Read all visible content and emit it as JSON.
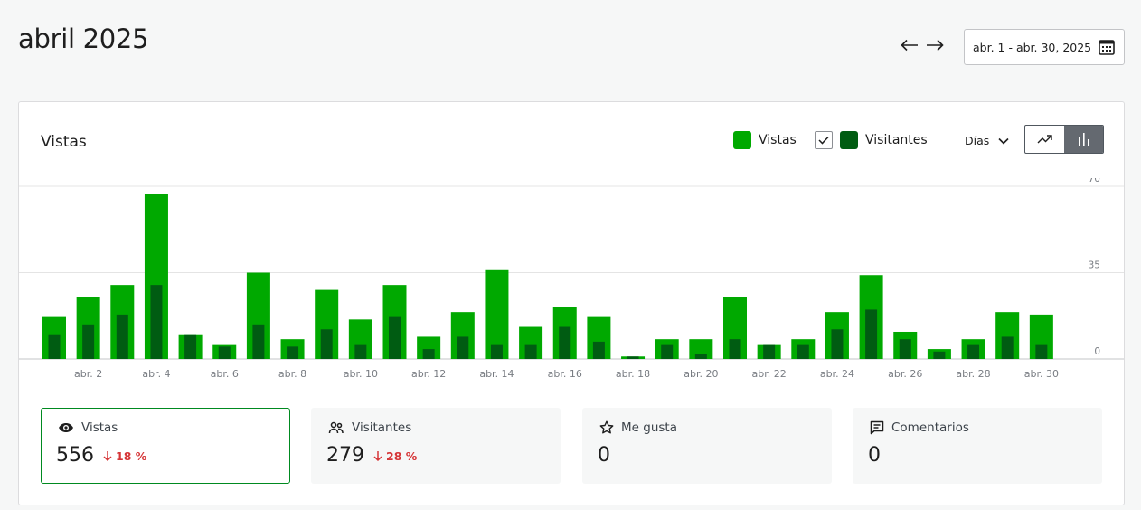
{
  "header": {
    "title": "abril 2025",
    "date_range": "abr. 1 - abr. 30, 2025",
    "prev_icon": "arrow-left-icon",
    "next_icon": "arrow-right-icon",
    "calendar_icon": "calendar-icon"
  },
  "card": {
    "title": "Vistas",
    "legend": {
      "views_label": "Vistas",
      "visitors_label": "Visitantes",
      "visitors_checked": true
    },
    "period_label": "Días",
    "chart_type_options": [
      "line",
      "bar"
    ],
    "chart_type_selected": "bar"
  },
  "colors": {
    "views": "#00a900",
    "visitors": "#005c12",
    "accent": "#008a20",
    "negative": "#d63638"
  },
  "chart_data": {
    "type": "bar",
    "categories": [
      "abr. 1",
      "abr. 2",
      "abr. 3",
      "abr. 4",
      "abr. 5",
      "abr. 6",
      "abr. 7",
      "abr. 8",
      "abr. 9",
      "abr. 10",
      "abr. 11",
      "abr. 12",
      "abr. 13",
      "abr. 14",
      "abr. 15",
      "abr. 16",
      "abr. 17",
      "abr. 18",
      "abr. 19",
      "abr. 20",
      "abr. 21",
      "abr. 22",
      "abr. 23",
      "abr. 24",
      "abr. 25",
      "abr. 26",
      "abr. 27",
      "abr. 28",
      "abr. 29",
      "abr. 30"
    ],
    "tick_labels": [
      "abr. 2",
      "abr. 4",
      "abr. 6",
      "abr. 8",
      "abr. 10",
      "abr. 12",
      "abr. 14",
      "abr. 16",
      "abr. 18",
      "abr. 20",
      "abr. 22",
      "abr. 24",
      "abr. 26",
      "abr. 28",
      "abr. 30"
    ],
    "series": [
      {
        "name": "Vistas",
        "values": [
          17,
          25,
          30,
          67,
          10,
          6,
          35,
          8,
          28,
          16,
          30,
          9,
          19,
          36,
          13,
          21,
          17,
          1,
          8,
          8,
          25,
          6,
          8,
          19,
          34,
          11,
          4,
          8,
          19,
          18
        ]
      },
      {
        "name": "Visitantes",
        "values": [
          10,
          14,
          18,
          30,
          10,
          5,
          14,
          5,
          12,
          6,
          17,
          4,
          9,
          6,
          6,
          13,
          7,
          1,
          6,
          2,
          8,
          6,
          6,
          12,
          20,
          8,
          3,
          6,
          9,
          6
        ]
      }
    ],
    "yticks": [
      "70",
      "35",
      "0"
    ],
    "ylim": [
      0,
      70
    ],
    "grid": true,
    "y_axis_side": "right"
  },
  "stats": [
    {
      "label": "Vistas",
      "icon": "eye-icon",
      "value": "556",
      "delta": "18 %",
      "delta_icon": "arrow-down-icon",
      "selected": true
    },
    {
      "label": "Visitantes",
      "icon": "people-icon",
      "value": "279",
      "delta": "28 %",
      "delta_icon": "arrow-down-icon",
      "selected": false
    },
    {
      "label": "Me gusta",
      "icon": "star-icon",
      "value": "0",
      "delta": "",
      "selected": false
    },
    {
      "label": "Comentarios",
      "icon": "comment-icon",
      "value": "0",
      "delta": "",
      "selected": false
    }
  ]
}
